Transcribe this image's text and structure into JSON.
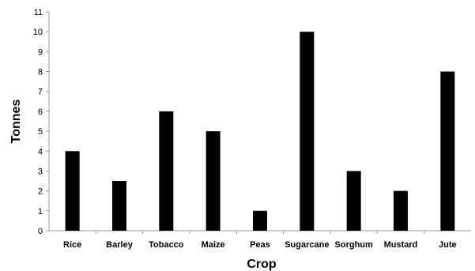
{
  "chart_data": {
    "type": "bar",
    "title": "",
    "xlabel": "Crop",
    "ylabel": "Tonnes",
    "categories": [
      "Rice",
      "Barley",
      "Tobacco",
      "Maize",
      "Peas",
      "Sugarcane",
      "Sorghum",
      "Mustard",
      "Jute"
    ],
    "values": [
      4,
      2.5,
      6,
      5,
      1,
      10,
      3,
      2,
      8
    ],
    "ylim": [
      0,
      11
    ],
    "yticks": [
      "0",
      "1",
      "2",
      "3",
      "4",
      "5",
      "6",
      "7",
      "8",
      "9",
      "10",
      "11"
    ],
    "grid": false,
    "legend": "none",
    "bar_color": "#000000",
    "axis_color": "#999999"
  }
}
